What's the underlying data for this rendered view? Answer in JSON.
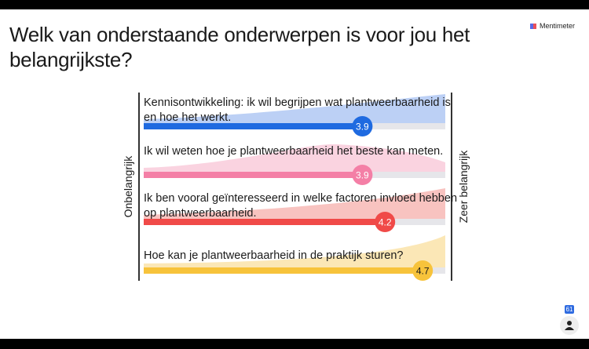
{
  "title": "Welk van onderstaande onderwerpen is voor jou het belangrijkste?",
  "brand": "Mentimeter",
  "scale": {
    "min": 1,
    "max": 5,
    "low_label": "Onbelangrijk",
    "high_label": "Zeer belangrijk"
  },
  "statements": [
    {
      "label": "Kennisontwikkeling: ik wil begrijpen wat plantweerbaarheid is en hoe het werkt.",
      "value": 3.9,
      "display": "3.9",
      "color": "#1f6ae0",
      "light": "#bcd0f5",
      "text_color": "#ffffff"
    },
    {
      "label": "Ik wil weten hoe je plantweerbaarheid het beste kan meten.",
      "value": 3.9,
      "display": "3.9",
      "color": "#f47fa6",
      "light": "#fad3e0",
      "text_color": "#ffffff"
    },
    {
      "label": "Ik ben vooral geïnteresseerd in welke factoren invloed hebben op plantweerbaarheid.",
      "value": 4.2,
      "display": "4.2",
      "color": "#f04a48",
      "light": "#f8c3c0",
      "text_color": "#ffffff"
    },
    {
      "label": "Hoe kan je plantweerbaarheid in de praktijk sturen?",
      "value": 4.7,
      "display": "4.7",
      "color": "#f7c33b",
      "light": "#fbe7b6",
      "text_color": "#1a1a1a"
    }
  ],
  "participants": "61"
}
